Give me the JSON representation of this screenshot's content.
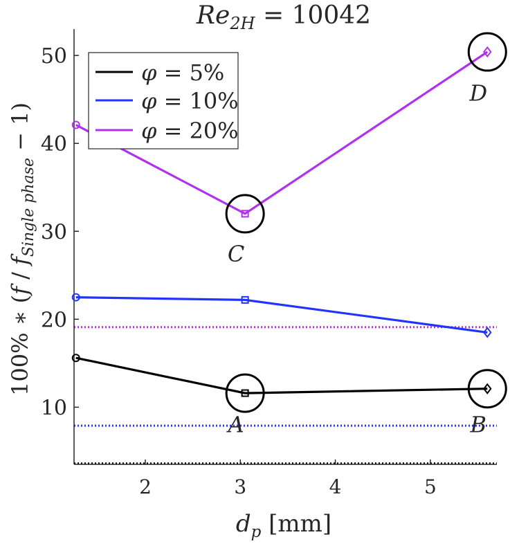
{
  "chart_data": {
    "type": "line",
    "title_main": "Re",
    "title_sub": "2H",
    "title_rest": " = 10042",
    "xlabel_main": "d",
    "xlabel_sub": "p",
    "xlabel_rest": " [mm]",
    "ylabel": {
      "prefix": "100% ∗ (",
      "f": "f",
      "slash": " / ",
      "f2": "f",
      "sub": "Single phase",
      "suffix": " − 1)"
    },
    "xlim": [
      1.25,
      5.7
    ],
    "ylim": [
      3.5,
      53
    ],
    "xticks": [
      2,
      3,
      4,
      5
    ],
    "xtick_labels": [
      "2",
      "3",
      "4",
      "5"
    ],
    "yticks": [
      10,
      20,
      30,
      40,
      50
    ],
    "ytick_labels": [
      "10",
      "20",
      "30",
      "40",
      "50"
    ],
    "x": [
      1.27,
      3.05,
      5.6
    ],
    "series": [
      {
        "name": "φ = 5%",
        "legend_phi": "φ",
        "legend_rest": " = 5%",
        "color": "#000000",
        "values": [
          15.6,
          11.6,
          12.1
        ],
        "baseline": 3.6
      },
      {
        "name": "φ = 10%",
        "legend_phi": "φ",
        "legend_rest": " = 10%",
        "color": "#2233ff",
        "values": [
          22.5,
          22.2,
          18.5
        ],
        "baseline": 7.9
      },
      {
        "name": "φ = 20%",
        "legend_phi": "φ",
        "legend_rest": " = 20%",
        "color": "#b030ee",
        "values": [
          42.1,
          32.0,
          50.4
        ],
        "baseline": 19.1
      }
    ],
    "markers": [
      "circle",
      "square",
      "diamond"
    ],
    "annotations": [
      {
        "label": "A",
        "x": 3.05,
        "y": 11.6,
        "label_y": 8.1
      },
      {
        "label": "B",
        "x": 5.6,
        "y": 12.1,
        "label_y": 8.1
      },
      {
        "label": "C",
        "x": 3.05,
        "y": 32.0,
        "label_y": 27.5
      },
      {
        "label": "D",
        "x": 5.6,
        "y": 50.4,
        "label_y": 45.8
      }
    ],
    "legend_location": "top-left"
  }
}
